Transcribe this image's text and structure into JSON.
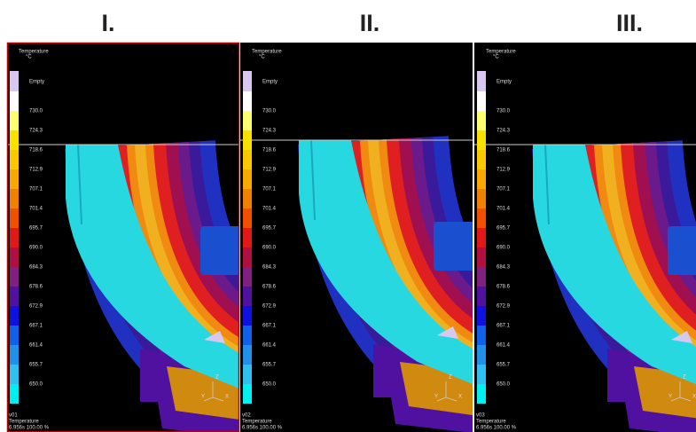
{
  "headers": [
    "I.",
    "II.",
    "III."
  ],
  "panels": [
    {
      "legend_title": "Temperature",
      "legend_unit": "°C",
      "legend_labels": [
        "Empty",
        "730.0",
        "724.3",
        "718.6",
        "712.9",
        "707.1",
        "701.4",
        "695.7",
        "690.0",
        "684.3",
        "678.6",
        "672.9",
        "667.1",
        "661.4",
        "655.7",
        "650.0"
      ],
      "axis_labels": [
        "Z",
        "Y",
        "X"
      ],
      "footer": [
        "v01",
        "Temperature",
        "6.956s 100.00 %"
      ]
    },
    {
      "legend_title": "Temperature",
      "legend_unit": "°C",
      "legend_labels": [
        "Empty",
        "730.0",
        "724.3",
        "718.6",
        "712.9",
        "707.1",
        "701.4",
        "695.7",
        "690.0",
        "684.3",
        "678.6",
        "672.9",
        "667.1",
        "661.4",
        "655.7",
        "650.0"
      ],
      "axis_labels": [
        "Z",
        "Y",
        "X"
      ],
      "footer": [
        "v02",
        "Temperature",
        "6.956s 100.00 %"
      ]
    },
    {
      "legend_title": "Temperature",
      "legend_unit": "°C",
      "legend_labels": [
        "Empty",
        "730.0",
        "724.3",
        "718.6",
        "712.9",
        "707.1",
        "701.4",
        "695.7",
        "690.0",
        "684.3",
        "678.6",
        "672.9",
        "667.1",
        "661.4",
        "655.7",
        "650.0"
      ],
      "axis_labels": [
        "Z",
        "Y",
        "X"
      ],
      "footer": [
        "v03",
        "Temperature",
        "6.956s 100.00 %"
      ]
    }
  ]
}
